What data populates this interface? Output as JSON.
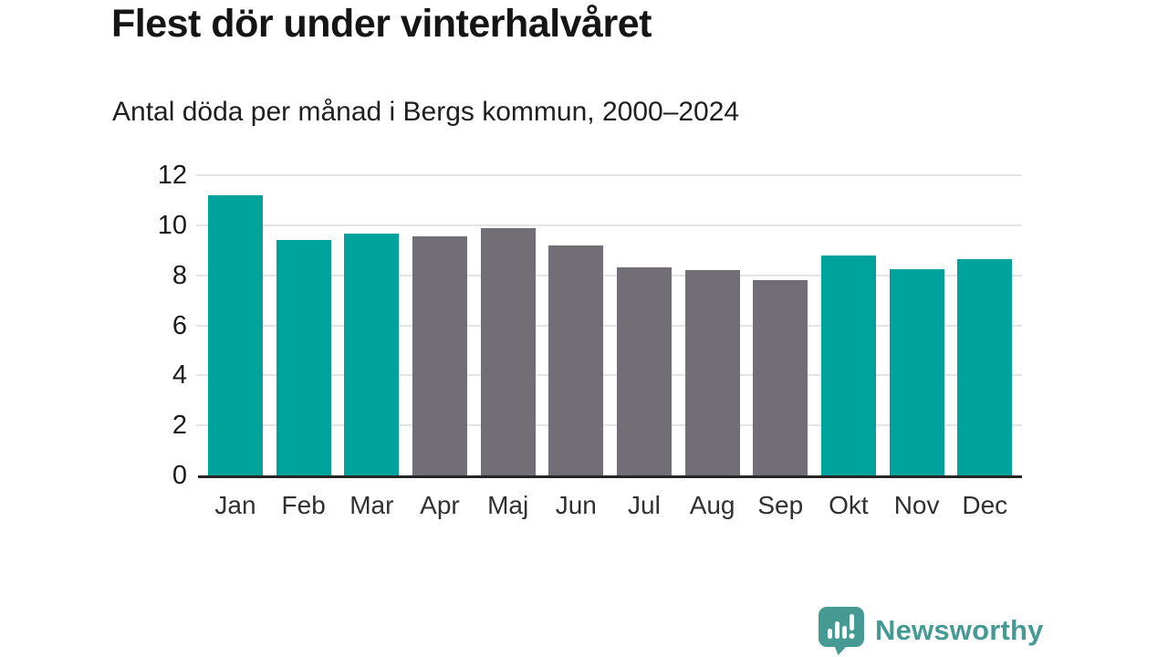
{
  "chart_data": {
    "type": "bar",
    "title": "Flest dör under vinterhalvåret",
    "subtitle": "Antal döda per månad i Bergs kommun, 2000–2024",
    "categories": [
      "Jan",
      "Feb",
      "Mar",
      "Apr",
      "Maj",
      "Jun",
      "Jul",
      "Aug",
      "Sep",
      "Okt",
      "Nov",
      "Dec"
    ],
    "values": [
      11.2,
      9.4,
      9.65,
      9.55,
      9.9,
      9.2,
      8.3,
      8.2,
      7.8,
      8.8,
      8.25,
      8.65
    ],
    "bar_color_keys": [
      "teal",
      "teal",
      "teal",
      "gray",
      "gray",
      "gray",
      "gray",
      "gray",
      "gray",
      "teal",
      "teal",
      "teal"
    ],
    "xlabel": "",
    "ylabel": "",
    "ylim": [
      0,
      12
    ],
    "yticks": [
      0,
      2,
      4,
      6,
      8,
      10,
      12
    ],
    "grid": "horizontal",
    "legend": "none"
  },
  "colors": {
    "teal": "#00a39b",
    "gray": "#716e76",
    "grid": "#e4e4e4",
    "axis": "#262626",
    "logo": "#459b94"
  },
  "footer": {
    "brand": "Newsworthy",
    "logo_icon": "newsworthy-speech-bubble-chart-icon"
  }
}
